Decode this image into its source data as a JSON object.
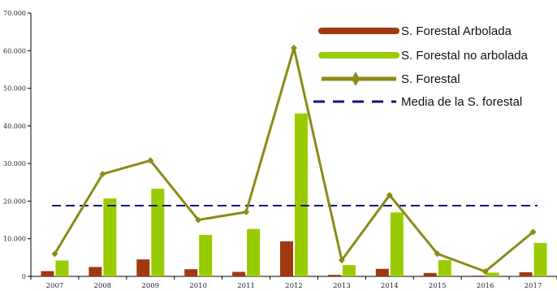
{
  "chart_data": {
    "type": "bar",
    "categories": [
      "2007",
      "2008",
      "2009",
      "2010",
      "2011",
      "2012",
      "2013",
      "2014",
      "2015",
      "2016",
      "2017"
    ],
    "ylim": [
      0,
      70000
    ],
    "yticks": [
      0,
      10000,
      20000,
      30000,
      40000,
      50000,
      60000,
      70000
    ],
    "ytick_labels": [
      "0",
      "10.000",
      "20.000",
      "30.000",
      "40.000",
      "50.000",
      "60.000",
      "70.000"
    ],
    "grid": false,
    "legend_position": "top-right",
    "series": [
      {
        "name": "S. Forestal Arbolada",
        "kind": "bar",
        "color": "#a0390e",
        "values": [
          1400,
          2500,
          4500,
          1900,
          1200,
          9300,
          400,
          2000,
          900,
          200,
          1100
        ]
      },
      {
        "name": "S. Forestal no arbolada",
        "kind": "bar",
        "color": "#99cc00",
        "values": [
          4200,
          20700,
          23300,
          11000,
          12600,
          43300,
          3000,
          17000,
          4300,
          1000,
          8900
        ]
      },
      {
        "name": "S. Forestal",
        "kind": "line",
        "color": "#8b8b18",
        "values": [
          6000,
          27200,
          30800,
          15000,
          17100,
          60700,
          4300,
          21600,
          6000,
          1300,
          11800
        ]
      },
      {
        "name": "Media de la S. forestal",
        "kind": "hline",
        "color": "#16127a",
        "value": 18800
      }
    ]
  }
}
